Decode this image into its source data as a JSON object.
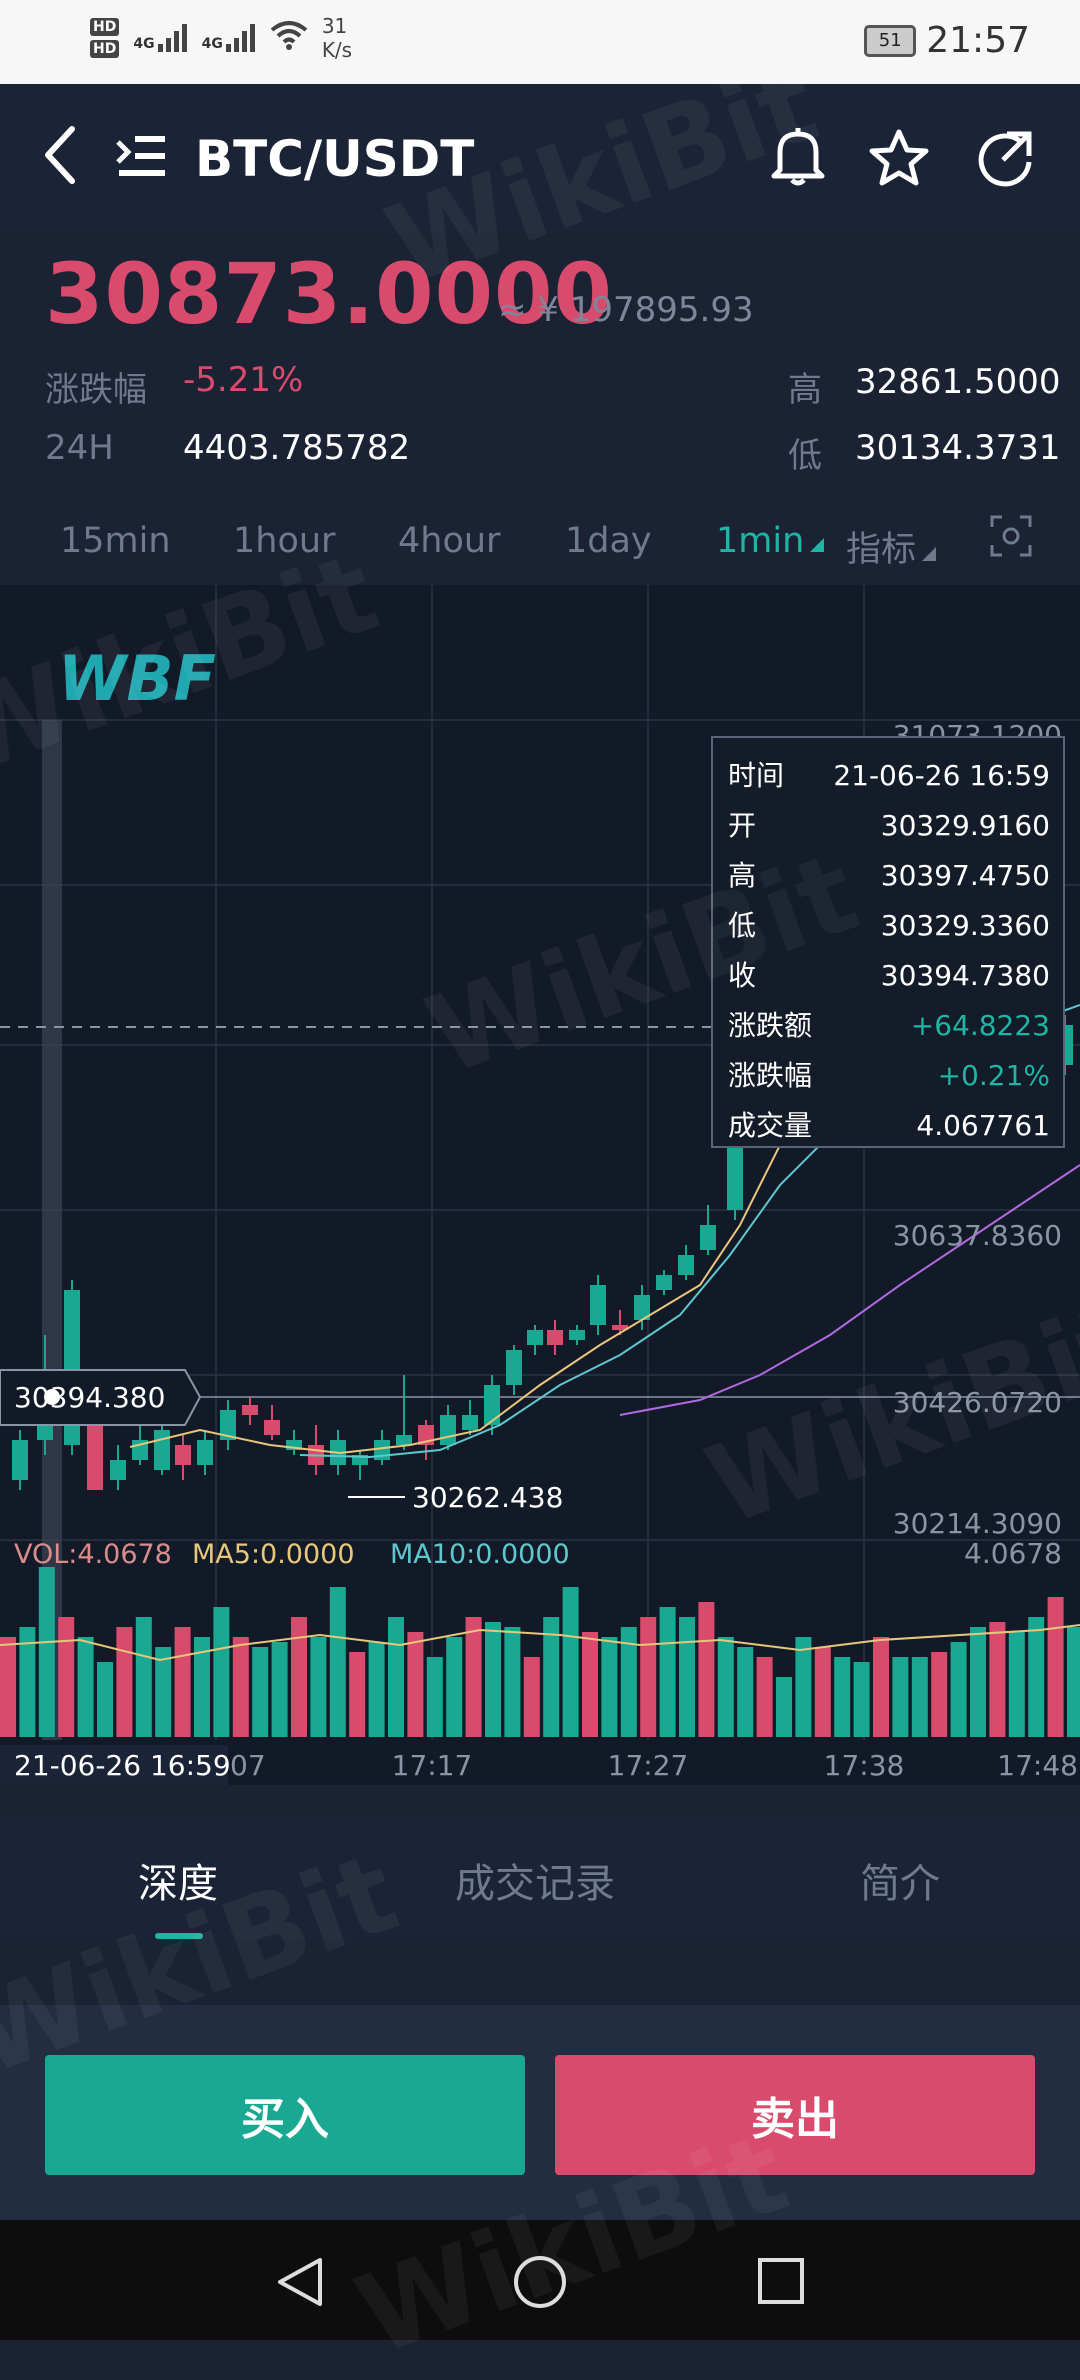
{
  "status_bar": {
    "network_badges": [
      "HD",
      "HD"
    ],
    "signal_1": "4G",
    "signal_2": "4G",
    "speed_value": "31",
    "speed_unit": "K/s",
    "battery": "51",
    "time": "21:57"
  },
  "header": {
    "pair": "BTC/USDT"
  },
  "ticker": {
    "price": "30873.0000",
    "cny_approx": "≈ ¥ 197895.93",
    "change_label": "涨跌幅",
    "change_value": "-5.21%",
    "h24_label": "24H",
    "h24_value": "4403.785782",
    "high_label": "高",
    "high_value": "32861.5000",
    "low_label": "低",
    "low_value": "30134.3731"
  },
  "intervals": {
    "items": [
      "15min",
      "1hour",
      "4hour",
      "1day",
      "1min"
    ],
    "indicator_label": "指标"
  },
  "chart": {
    "logo_text": "WBF",
    "price_axis": [
      "31073.1200",
      "30637.8360",
      "30426.0720",
      "30214.3090"
    ],
    "crosshair_price": "30394.380",
    "min_label": "30262.438",
    "tooltip": {
      "rows": [
        {
          "label": "时间",
          "value": "21-06-26 16:59"
        },
        {
          "label": "开",
          "value": "30329.9160"
        },
        {
          "label": "高",
          "value": "30397.4750"
        },
        {
          "label": "低",
          "value": "30329.3360"
        },
        {
          "label": "收",
          "value": "30394.7380"
        },
        {
          "label": "涨跌额",
          "value": "+64.8223"
        },
        {
          "label": "涨跌幅",
          "value": "+0.21%"
        },
        {
          "label": "成交量",
          "value": "4.067761"
        }
      ],
      "positive_color": "#1fb5a4"
    },
    "volume": {
      "vol_label": "VOL:4.0678",
      "ma5_label": "MA5:0.0000",
      "ma10_label": "MA10:0.0000",
      "max_label": "4.0678"
    },
    "time_axis": {
      "crosshair_time": "21-06-26 16:59",
      "ticks": [
        "07",
        "17:17",
        "17:27",
        "17:38",
        "17:48"
      ]
    },
    "colors": {
      "up": "#19a891",
      "down": "#d94b6c",
      "ma_yellow": "#e8c77b",
      "ma_cyan": "#5ec8d0",
      "ma_purple": "#b06ae0"
    }
  },
  "bottom_tabs": [
    "深度",
    "成交记录",
    "简介"
  ],
  "actions": {
    "buy": "买入",
    "sell": "卖出"
  },
  "watermark": "WikiBit"
}
